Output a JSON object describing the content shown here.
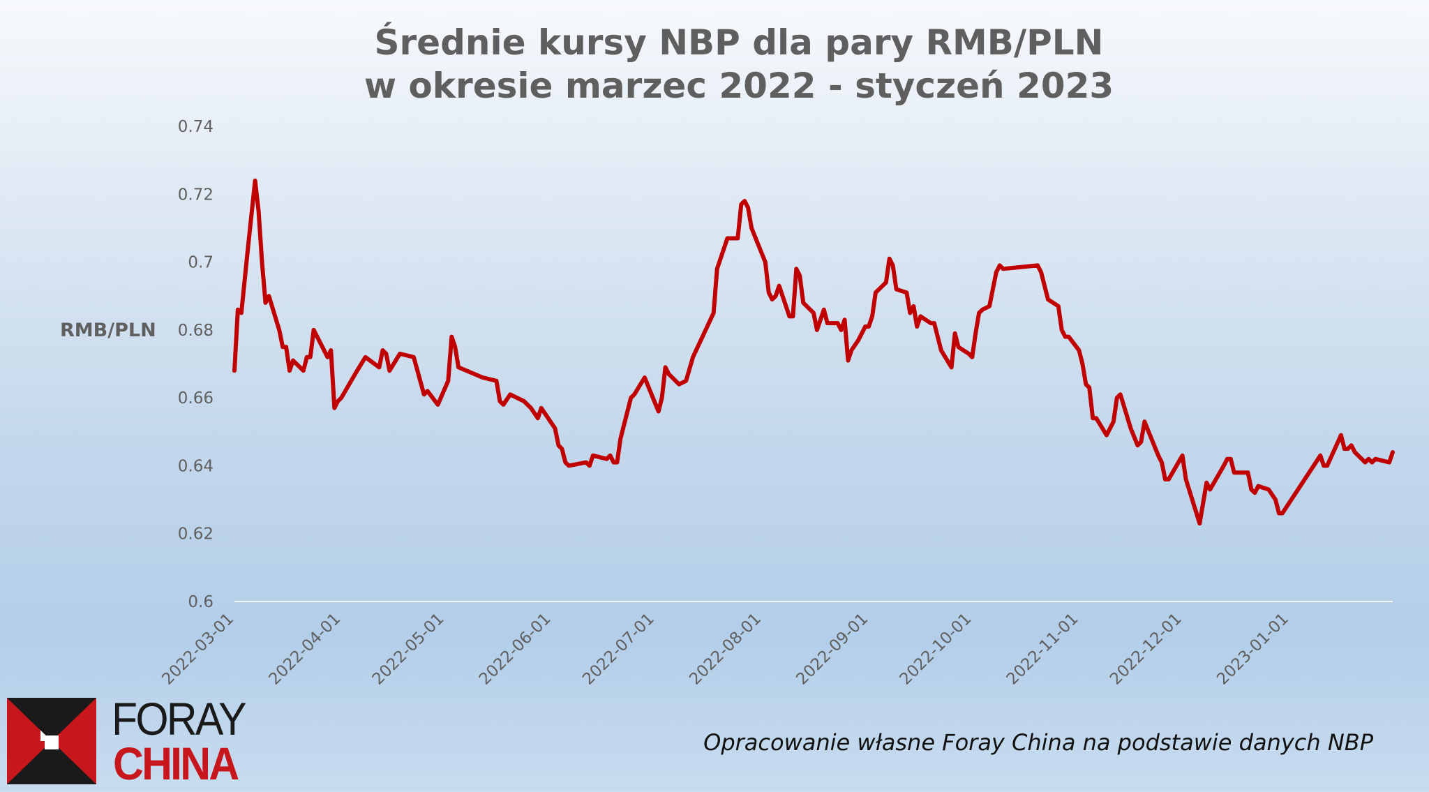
{
  "chart_data": {
    "type": "line",
    "title_lines": [
      "Średnie kursy NBP dla pary RMB/PLN",
      "w okresie marzec 2022 - styczeń 2023"
    ],
    "ylabel": "RMB/PLN",
    "xlabel": "",
    "ylim": [
      0.6,
      0.74
    ],
    "yticks": [
      "0.74",
      "0.72",
      "0.7",
      "0.68",
      "0.66",
      "0.64",
      "0.62",
      "0.6"
    ],
    "xlim": [
      "2022-03-01",
      "2023-01-31"
    ],
    "xticks": [
      "2022-03-01",
      "2022-04-01",
      "2022-05-01",
      "2022-06-01",
      "2022-07-01",
      "2022-08-01",
      "2022-09-01",
      "2022-10-01",
      "2022-11-01",
      "2022-12-01",
      "2023-01-01"
    ],
    "grid": false,
    "color": "#c00000",
    "series": [
      {
        "points": [
          [
            "2022-03-01",
            0.668
          ],
          [
            "2022-03-02",
            0.686
          ],
          [
            "2022-03-03",
            0.685
          ],
          [
            "2022-03-04",
            0.695
          ],
          [
            "2022-03-05",
            0.705
          ],
          [
            "2022-03-07",
            0.724
          ],
          [
            "2022-03-08",
            0.715
          ],
          [
            "2022-03-09",
            0.7
          ],
          [
            "2022-03-10",
            0.688
          ],
          [
            "2022-03-11",
            0.69
          ],
          [
            "2022-03-14",
            0.68
          ],
          [
            "2022-03-15",
            0.675
          ],
          [
            "2022-03-16",
            0.675
          ],
          [
            "2022-03-17",
            0.668
          ],
          [
            "2022-03-18",
            0.671
          ],
          [
            "2022-03-21",
            0.668
          ],
          [
            "2022-03-22",
            0.672
          ],
          [
            "2022-03-23",
            0.672
          ],
          [
            "2022-03-24",
            0.68
          ],
          [
            "2022-03-25",
            0.678
          ],
          [
            "2022-03-28",
            0.672
          ],
          [
            "2022-03-29",
            0.674
          ],
          [
            "2022-03-30",
            0.657
          ],
          [
            "2022-03-31",
            0.659
          ],
          [
            "2022-04-01",
            0.66
          ],
          [
            "2022-04-05",
            0.667
          ],
          [
            "2022-04-08",
            0.672
          ],
          [
            "2022-04-12",
            0.669
          ],
          [
            "2022-04-13",
            0.674
          ],
          [
            "2022-04-14",
            0.673
          ],
          [
            "2022-04-15",
            0.668
          ],
          [
            "2022-04-18",
            0.673
          ],
          [
            "2022-04-22",
            0.672
          ],
          [
            "2022-04-25",
            0.661
          ],
          [
            "2022-04-26",
            0.662
          ],
          [
            "2022-04-29",
            0.658
          ],
          [
            "2022-05-02",
            0.665
          ],
          [
            "2022-05-03",
            0.678
          ],
          [
            "2022-05-04",
            0.675
          ],
          [
            "2022-05-05",
            0.669
          ],
          [
            "2022-05-12",
            0.666
          ],
          [
            "2022-05-16",
            0.665
          ],
          [
            "2022-05-17",
            0.659
          ],
          [
            "2022-05-18",
            0.658
          ],
          [
            "2022-05-20",
            0.661
          ],
          [
            "2022-05-24",
            0.659
          ],
          [
            "2022-05-26",
            0.657
          ],
          [
            "2022-05-28",
            0.654
          ],
          [
            "2022-05-29",
            0.657
          ],
          [
            "2022-06-02",
            0.651
          ],
          [
            "2022-06-03",
            0.646
          ],
          [
            "2022-06-04",
            0.645
          ],
          [
            "2022-06-05",
            0.641
          ],
          [
            "2022-06-06",
            0.64
          ],
          [
            "2022-06-11",
            0.641
          ],
          [
            "2022-06-12",
            0.64
          ],
          [
            "2022-06-13",
            0.643
          ],
          [
            "2022-06-17",
            0.642
          ],
          [
            "2022-06-18",
            0.643
          ],
          [
            "2022-06-19",
            0.641
          ],
          [
            "2022-06-20",
            0.641
          ],
          [
            "2022-06-21",
            0.648
          ],
          [
            "2022-06-24",
            0.66
          ],
          [
            "2022-06-25",
            0.661
          ],
          [
            "2022-06-28",
            0.666
          ],
          [
            "2022-07-02",
            0.656
          ],
          [
            "2022-07-03",
            0.66
          ],
          [
            "2022-07-04",
            0.669
          ],
          [
            "2022-07-05",
            0.667
          ],
          [
            "2022-07-08",
            0.664
          ],
          [
            "2022-07-10",
            0.665
          ],
          [
            "2022-07-12",
            0.672
          ],
          [
            "2022-07-18",
            0.685
          ],
          [
            "2022-07-19",
            0.698
          ],
          [
            "2022-07-20",
            0.701
          ],
          [
            "2022-07-22",
            0.707
          ],
          [
            "2022-07-25",
            0.707
          ],
          [
            "2022-07-26",
            0.717
          ],
          [
            "2022-07-27",
            0.718
          ],
          [
            "2022-07-28",
            0.716
          ],
          [
            "2022-07-29",
            0.71
          ],
          [
            "2022-08-02",
            0.7
          ],
          [
            "2022-08-03",
            0.691
          ],
          [
            "2022-08-04",
            0.689
          ],
          [
            "2022-08-05",
            0.69
          ],
          [
            "2022-08-06",
            0.693
          ],
          [
            "2022-08-09",
            0.684
          ],
          [
            "2022-08-10",
            0.684
          ],
          [
            "2022-08-11",
            0.698
          ],
          [
            "2022-08-12",
            0.696
          ],
          [
            "2022-08-13",
            0.688
          ],
          [
            "2022-08-16",
            0.685
          ],
          [
            "2022-08-17",
            0.68
          ],
          [
            "2022-08-19",
            0.686
          ],
          [
            "2022-08-20",
            0.682
          ],
          [
            "2022-08-23",
            0.682
          ],
          [
            "2022-08-24",
            0.68
          ],
          [
            "2022-08-25",
            0.683
          ],
          [
            "2022-08-26",
            0.671
          ],
          [
            "2022-08-27",
            0.674
          ],
          [
            "2022-08-29",
            0.677
          ],
          [
            "2022-08-31",
            0.681
          ],
          [
            "2022-09-01",
            0.681
          ],
          [
            "2022-09-02",
            0.684
          ],
          [
            "2022-09-03",
            0.691
          ],
          [
            "2022-09-05",
            0.693
          ],
          [
            "2022-09-06",
            0.694
          ],
          [
            "2022-09-07",
            0.701
          ],
          [
            "2022-09-08",
            0.699
          ],
          [
            "2022-09-09",
            0.692
          ],
          [
            "2022-09-12",
            0.691
          ],
          [
            "2022-09-13",
            0.685
          ],
          [
            "2022-09-14",
            0.687
          ],
          [
            "2022-09-15",
            0.681
          ],
          [
            "2022-09-16",
            0.684
          ],
          [
            "2022-09-19",
            0.682
          ],
          [
            "2022-09-20",
            0.682
          ],
          [
            "2022-09-22",
            0.674
          ],
          [
            "2022-09-25",
            0.669
          ],
          [
            "2022-09-26",
            0.679
          ],
          [
            "2022-09-27",
            0.675
          ],
          [
            "2022-09-30",
            0.673
          ],
          [
            "2022-10-01",
            0.672
          ],
          [
            "2022-10-02",
            0.679
          ],
          [
            "2022-10-03",
            0.685
          ],
          [
            "2022-10-04",
            0.686
          ],
          [
            "2022-10-06",
            0.687
          ],
          [
            "2022-10-08",
            0.697
          ],
          [
            "2022-10-09",
            0.699
          ],
          [
            "2022-10-10",
            0.698
          ],
          [
            "2022-10-20",
            0.699
          ],
          [
            "2022-10-21",
            0.697
          ],
          [
            "2022-10-23",
            0.689
          ],
          [
            "2022-10-26",
            0.687
          ],
          [
            "2022-10-27",
            0.68
          ],
          [
            "2022-10-28",
            0.678
          ],
          [
            "2022-10-29",
            0.678
          ],
          [
            "2022-11-01",
            0.674
          ],
          [
            "2022-11-02",
            0.67
          ],
          [
            "2022-11-03",
            0.664
          ],
          [
            "2022-11-04",
            0.663
          ],
          [
            "2022-11-05",
            0.654
          ],
          [
            "2022-11-06",
            0.654
          ],
          [
            "2022-11-09",
            0.649
          ],
          [
            "2022-11-11",
            0.653
          ],
          [
            "2022-11-12",
            0.66
          ],
          [
            "2022-11-13",
            0.661
          ],
          [
            "2022-11-16",
            0.651
          ],
          [
            "2022-11-18",
            0.646
          ],
          [
            "2022-11-19",
            0.647
          ],
          [
            "2022-11-20",
            0.653
          ],
          [
            "2022-11-24",
            0.643
          ],
          [
            "2022-11-25",
            0.641
          ],
          [
            "2022-11-26",
            0.636
          ],
          [
            "2022-11-27",
            0.636
          ],
          [
            "2022-12-01",
            0.643
          ],
          [
            "2022-12-02",
            0.636
          ],
          [
            "2022-12-06",
            0.623
          ],
          [
            "2022-12-08",
            0.635
          ],
          [
            "2022-12-09",
            0.633
          ],
          [
            "2022-12-13",
            0.64
          ],
          [
            "2022-12-14",
            0.642
          ],
          [
            "2022-12-15",
            0.642
          ],
          [
            "2022-12-16",
            0.638
          ],
          [
            "2022-12-19",
            0.638
          ],
          [
            "2022-12-20",
            0.638
          ],
          [
            "2022-12-21",
            0.633
          ],
          [
            "2022-12-22",
            0.632
          ],
          [
            "2022-12-23",
            0.634
          ],
          [
            "2022-12-26",
            0.633
          ],
          [
            "2022-12-28",
            0.63
          ],
          [
            "2022-12-29",
            0.626
          ],
          [
            "2022-12-30",
            0.626
          ],
          [
            "2023-01-10",
            0.643
          ],
          [
            "2023-01-11",
            0.64
          ],
          [
            "2023-01-12",
            0.64
          ],
          [
            "2023-01-16",
            0.649
          ],
          [
            "2023-01-17",
            0.645
          ],
          [
            "2023-01-18",
            0.645
          ],
          [
            "2023-01-19",
            0.646
          ],
          [
            "2023-01-20",
            0.644
          ],
          [
            "2023-01-23",
            0.641
          ],
          [
            "2023-01-24",
            0.642
          ],
          [
            "2023-01-25",
            0.641
          ],
          [
            "2023-01-26",
            0.642
          ],
          [
            "2023-01-30",
            0.641
          ],
          [
            "2023-01-31",
            0.644
          ]
        ]
      }
    ]
  },
  "logo": {
    "line1": "FORAY",
    "line2": "CHINA"
  },
  "source_note": "Opracowanie własne Foray China na podstawie danych NBP",
  "colors": {
    "line": "#c00000",
    "logo_red": "#c8161d",
    "logo_dark": "#1a1a1a",
    "text": "#5f5f5f"
  }
}
